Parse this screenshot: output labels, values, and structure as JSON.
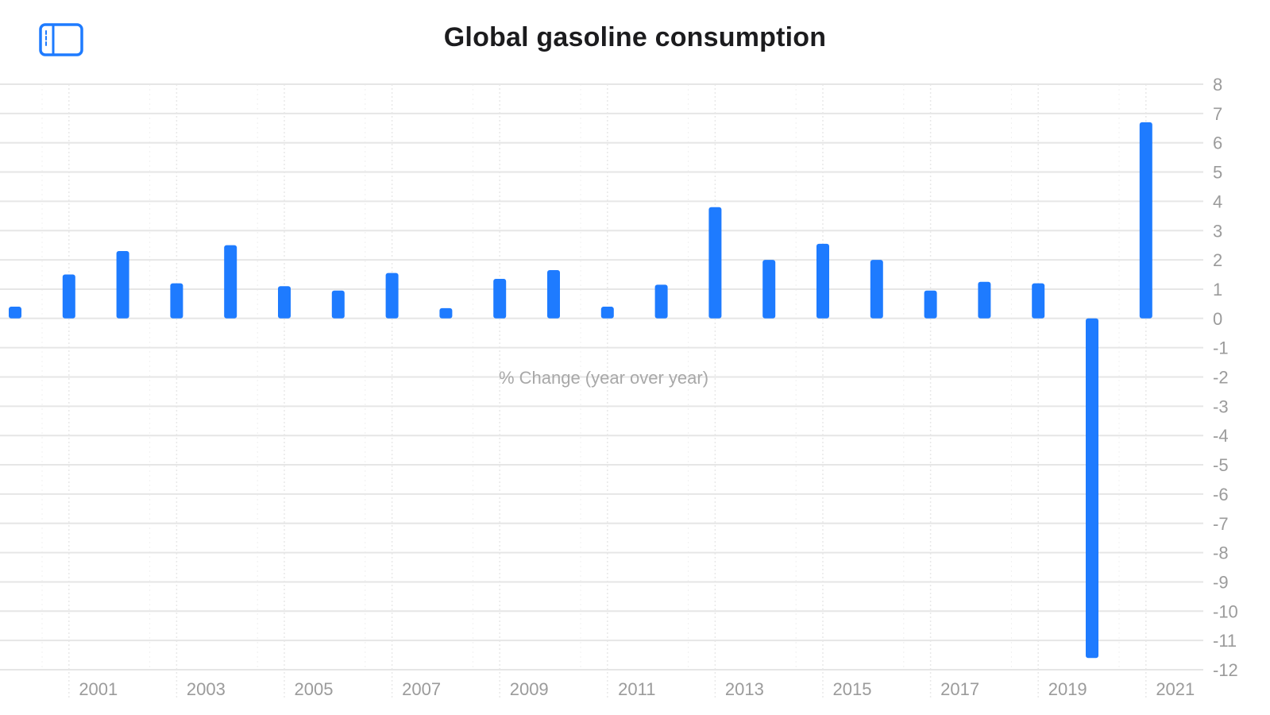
{
  "window": {
    "title": "Global gasoline consumption"
  },
  "toolbar": {
    "sidebar_icon": "sidebar-left-icon",
    "accent_color": "#1e7bff"
  },
  "chart_data": {
    "type": "bar",
    "title": "Global gasoline consumption",
    "ylabel": "% Change (year over year)",
    "xlabel": "",
    "years": [
      2000,
      2001,
      2002,
      2003,
      2004,
      2005,
      2006,
      2007,
      2008,
      2009,
      2010,
      2011,
      2012,
      2013,
      2014,
      2015,
      2016,
      2017,
      2018,
      2019,
      2020,
      2021
    ],
    "values": [
      0.4,
      1.5,
      2.3,
      1.2,
      2.5,
      1.1,
      0.95,
      1.55,
      0.35,
      1.35,
      1.65,
      0.4,
      1.15,
      3.8,
      2.0,
      2.55,
      2.0,
      0.95,
      1.25,
      1.2,
      -11.6,
      6.7
    ],
    "x_tick_labels": [
      "2001",
      "2003",
      "2005",
      "2007",
      "2009",
      "2011",
      "2013",
      "2015",
      "2017",
      "2019",
      "2021"
    ],
    "y_ticks": [
      8,
      7,
      6,
      5,
      4,
      3,
      2,
      1,
      0,
      -1,
      -2,
      -3,
      -4,
      -5,
      -6,
      -7,
      -8,
      -9,
      -10,
      -11,
      -12
    ],
    "ylim": [
      -12,
      8
    ],
    "bar_color": "#1e7bff",
    "grid": true,
    "y_axis_side": "right"
  }
}
